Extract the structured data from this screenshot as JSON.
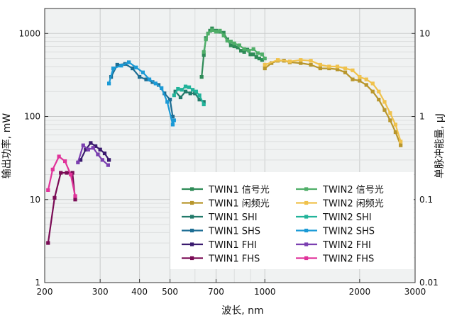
{
  "chart_data": {
    "type": "line",
    "xlabel": "波长, nm",
    "ylabel_left": "输出功率, mW",
    "ylabel_right": "单脉冲能量, μJ",
    "x_scale": "log",
    "y_scale": "log",
    "xlim": [
      200,
      3000
    ],
    "ylim_left": [
      1,
      2000
    ],
    "ylim_right": [
      0.01,
      20
    ],
    "x_ticks": [
      200,
      300,
      400,
      500,
      700,
      1000,
      2000,
      3000
    ],
    "x_tick_labels": [
      "200",
      "300",
      "400",
      "500",
      "700",
      "1000",
      "2000",
      "3000"
    ],
    "y_ticks_left": [
      1,
      10,
      100,
      1000
    ],
    "y_tick_labels_left": [
      "1",
      "10",
      "100",
      "1000"
    ],
    "y_ticks_right": [
      0.01,
      0.1,
      1,
      10
    ],
    "y_tick_labels_right": [
      "0.01",
      "0.1",
      "1",
      "10"
    ],
    "grid": true,
    "plot_background": "#f0f2f2",
    "legend_position": "lower-right",
    "series": [
      {
        "name": "TWIN1 信号光",
        "color": "#2e8b57",
        "x": [
          630,
          640,
          650,
          670,
          680,
          700,
          720,
          740,
          760,
          780,
          800,
          820,
          840,
          860,
          880,
          900,
          920,
          940,
          960,
          980
        ],
        "y": [
          300,
          550,
          880,
          1080,
          1150,
          1080,
          1050,
          1020,
          850,
          720,
          700,
          680,
          620,
          600,
          640,
          560,
          560,
          520,
          500,
          480
        ]
      },
      {
        "name": "TWIN1 闲频光",
        "color": "#b8962c",
        "x": [
          1000,
          1050,
          1100,
          1150,
          1200,
          1300,
          1400,
          1500,
          1600,
          1700,
          1800,
          1900,
          2000,
          2100,
          2200,
          2300,
          2400,
          2500,
          2600,
          2700
        ],
        "y": [
          380,
          440,
          470,
          470,
          450,
          440,
          420,
          380,
          380,
          370,
          340,
          280,
          270,
          240,
          200,
          160,
          120,
          90,
          65,
          45
        ]
      },
      {
        "name": "TWIN1 SHI",
        "color": "#227a6a",
        "x": [
          520,
          540,
          560,
          580,
          600,
          620,
          640
        ],
        "y": [
          200,
          170,
          200,
          190,
          190,
          160,
          150
        ]
      },
      {
        "name": "TWIN1 SHS",
        "color": "#1d6e94",
        "x": [
          325,
          340,
          360,
          380,
          400,
          420,
          440,
          460,
          480,
          500,
          510
        ],
        "y": [
          300,
          420,
          430,
          380,
          300,
          280,
          260,
          240,
          190,
          160,
          100
        ]
      },
      {
        "name": "TWIN1 FHI",
        "color": "#3a1a6e",
        "x": [
          260,
          270,
          280,
          290,
          300,
          310,
          320
        ],
        "y": [
          30,
          40,
          48,
          44,
          40,
          36,
          30
        ]
      },
      {
        "name": "TWIN1 FHS",
        "color": "#7a0b55",
        "x": [
          205,
          215,
          225,
          235,
          245,
          250
        ],
        "y": [
          3,
          10.5,
          21,
          21,
          21,
          10
        ]
      },
      {
        "name": "TWIN2 信号光",
        "color": "#4fae68",
        "x": [
          640,
          650,
          660,
          680,
          700,
          720,
          740,
          760,
          780,
          800,
          830,
          860,
          890,
          920,
          950,
          980,
          1000
        ],
        "y": [
          600,
          850,
          1000,
          1100,
          1050,
          1080,
          950,
          820,
          800,
          760,
          720,
          650,
          620,
          650,
          580,
          560,
          500
        ]
      },
      {
        "name": "TWIN2 闲频光",
        "color": "#f0c24c",
        "x": [
          1000,
          1100,
          1200,
          1300,
          1400,
          1500,
          1600,
          1700,
          1800,
          1900,
          2000,
          2100,
          2200,
          2300,
          2400,
          2500,
          2600,
          2700
        ],
        "y": [
          420,
          480,
          460,
          480,
          470,
          420,
          400,
          400,
          380,
          360,
          300,
          280,
          250,
          200,
          150,
          110,
          80,
          50
        ]
      },
      {
        "name": "TWIN2 SHI",
        "color": "#22b39a",
        "x": [
          515,
          530,
          545,
          560,
          575,
          590,
          605,
          620,
          640
        ],
        "y": [
          180,
          215,
          210,
          230,
          225,
          210,
          200,
          180,
          140
        ]
      },
      {
        "name": "TWIN2 SHS",
        "color": "#1b9ad6",
        "x": [
          320,
          330,
          350,
          370,
          390,
          410,
          430,
          450,
          470,
          490,
          510,
          515
        ],
        "y": [
          250,
          380,
          410,
          450,
          390,
          340,
          280,
          250,
          220,
          150,
          80,
          90
        ]
      },
      {
        "name": "TWIN2 FHI",
        "color": "#7b3fb0",
        "x": [
          255,
          265,
          275,
          285,
          295,
          305,
          318
        ],
        "y": [
          28,
          45,
          40,
          42,
          35,
          30,
          26
        ]
      },
      {
        "name": "TWIN2 FHS",
        "color": "#e0339a",
        "x": [
          205,
          212,
          222,
          232,
          242,
          250
        ],
        "y": [
          13,
          23,
          33,
          29,
          20,
          11
        ]
      }
    ]
  }
}
